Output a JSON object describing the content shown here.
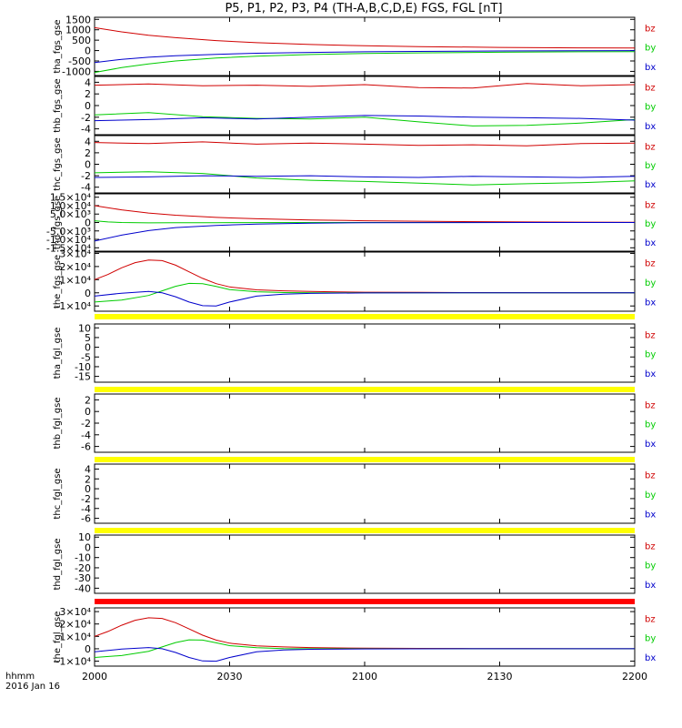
{
  "title": "P5, P1, P2, P3, P4 (TH-A,B,C,D,E) FGS, FGL [nT]",
  "footer": {
    "line1": "hhmm",
    "line2": "2016 Jan 16"
  },
  "colors": {
    "bz": "#d00000",
    "by": "#00cc00",
    "bx": "#0000cc",
    "bar_yellow": "#ffff00",
    "bar_red": "#ff0000"
  },
  "chart_data": {
    "type": "line",
    "x_range": [
      "2000",
      "2200"
    ],
    "x_ticks": [
      "2000",
      "2030",
      "2100",
      "2130",
      "2200"
    ],
    "legend": [
      "bz",
      "by",
      "bx"
    ],
    "panels": [
      {
        "ylabel": "tha_fgs_gse",
        "ylim": [
          -1200,
          1600
        ],
        "ytick_values": [
          1500,
          1000,
          500,
          0,
          -500,
          -1000
        ],
        "ytick_labels": [
          "1500",
          "1000",
          "500",
          "0",
          "-500",
          "-1000"
        ],
        "series": [
          {
            "name": "bz",
            "x": [
              0,
              10,
              20,
              30,
              45,
              60,
              80,
              100,
              120,
              150,
              180,
              200
            ],
            "y": [
              1100,
              900,
              740,
              620,
              480,
              380,
              290,
              230,
              190,
              150,
              130,
              120
            ]
          },
          {
            "name": "by",
            "x": [
              0,
              10,
              20,
              30,
              45,
              60,
              80,
              100,
              120,
              150,
              180,
              200
            ],
            "y": [
              -1050,
              -820,
              -640,
              -500,
              -360,
              -270,
              -190,
              -140,
              -110,
              -80,
              -60,
              -50
            ]
          },
          {
            "name": "bx",
            "x": [
              0,
              10,
              20,
              30,
              45,
              60,
              80,
              100,
              120,
              150,
              180,
              200
            ],
            "y": [
              -580,
              -420,
              -320,
              -250,
              -180,
              -130,
              -90,
              -60,
              -40,
              -20,
              -10,
              0
            ]
          }
        ]
      },
      {
        "ylabel": "thb_fgs_gse",
        "ylim": [
          -5,
          5
        ],
        "ytick_values": [
          4,
          2,
          0,
          -2,
          -4
        ],
        "ytick_labels": [
          "4",
          "2",
          "0",
          "-2",
          "-4"
        ],
        "series": [
          {
            "name": "bz",
            "x": [
              0,
              20,
              40,
              60,
              80,
              100,
              120,
              140,
              160,
              180,
              200
            ],
            "y": [
              3.5,
              3.7,
              3.4,
              3.5,
              3.3,
              3.6,
              3.1,
              3.0,
              3.8,
              3.4,
              3.6
            ]
          },
          {
            "name": "by",
            "x": [
              0,
              20,
              40,
              60,
              80,
              100,
              120,
              140,
              160,
              180,
              200
            ],
            "y": [
              -1.6,
              -1.2,
              -1.9,
              -2.2,
              -2.3,
              -2.0,
              -2.8,
              -3.5,
              -3.4,
              -3.0,
              -2.4
            ]
          },
          {
            "name": "bx",
            "x": [
              0,
              20,
              40,
              60,
              80,
              100,
              120,
              140,
              160,
              180,
              200
            ],
            "y": [
              -2.6,
              -2.4,
              -2.1,
              -2.3,
              -2.0,
              -1.7,
              -1.8,
              -2.0,
              -2.1,
              -2.2,
              -2.5
            ]
          }
        ]
      },
      {
        "ylabel": "thc_fgs_gse",
        "ylim": [
          -5,
          5
        ],
        "ytick_values": [
          4,
          2,
          0,
          -2,
          -4
        ],
        "ytick_labels": [
          "4",
          "2",
          "0",
          "-2",
          "-4"
        ],
        "series": [
          {
            "name": "bz",
            "x": [
              0,
              20,
              40,
              60,
              80,
              100,
              120,
              140,
              160,
              180,
              200
            ],
            "y": [
              3.8,
              3.6,
              3.9,
              3.5,
              3.7,
              3.5,
              3.3,
              3.4,
              3.2,
              3.6,
              3.7
            ]
          },
          {
            "name": "by",
            "x": [
              0,
              20,
              40,
              60,
              80,
              100,
              120,
              140,
              160,
              180,
              200
            ],
            "y": [
              -1.5,
              -1.3,
              -1.6,
              -2.4,
              -2.8,
              -3.0,
              -3.3,
              -3.6,
              -3.4,
              -3.2,
              -2.9
            ]
          },
          {
            "name": "bx",
            "x": [
              0,
              20,
              40,
              60,
              80,
              100,
              120,
              140,
              160,
              180,
              200
            ],
            "y": [
              -2.3,
              -2.2,
              -2.0,
              -2.1,
              -2.0,
              -2.2,
              -2.3,
              -2.1,
              -2.2,
              -2.3,
              -2.1
            ]
          }
        ]
      },
      {
        "ylabel": "thd_fgs_gse",
        "ylim": [
          -17000,
          17000
        ],
        "ytick_values": [
          15000,
          10000,
          5000,
          0,
          -5000,
          -10000,
          -15000
        ],
        "ytick_labels": [
          "1.5×10⁴",
          "1.0×10⁴",
          "5.0×10³",
          "0",
          "-5.0×10³",
          "-1.0×10⁴",
          "-1.5×10⁴"
        ],
        "series": [
          {
            "name": "bz",
            "x": [
              0,
              10,
              20,
              30,
              45,
              60,
              80,
              100,
              130,
              160,
              200
            ],
            "y": [
              10000,
              7500,
              5600,
              4300,
              3000,
              2200,
              1500,
              1000,
              600,
              300,
              100
            ]
          },
          {
            "name": "by",
            "x": [
              0,
              5,
              10,
              20,
              30,
              45,
              60,
              80,
              100,
              130,
              200
            ],
            "y": [
              1000,
              300,
              0,
              -200,
              -150,
              -100,
              -50,
              -20,
              0,
              0,
              0
            ]
          },
          {
            "name": "bx",
            "x": [
              0,
              10,
              20,
              30,
              45,
              60,
              80,
              100,
              130,
              160,
              200
            ],
            "y": [
              -11000,
              -7500,
              -4800,
              -3000,
              -1700,
              -900,
              -400,
              -150,
              -40,
              0,
              0
            ]
          }
        ]
      },
      {
        "ylabel": "the_fgs_gse",
        "ylim": [
          -14000,
          31000
        ],
        "ytick_values": [
          30000,
          20000,
          10000,
          0,
          -10000
        ],
        "ytick_labels": [
          "3×10⁴",
          "2×10⁴",
          "1×10⁴",
          "0",
          "-1×10⁴"
        ],
        "series": [
          {
            "name": "bz",
            "x": [
              0,
              5,
              10,
              15,
              20,
              25,
              30,
              35,
              40,
              45,
              50,
              60,
              70,
              80,
              90,
              100,
              120,
              140,
              160,
              200
            ],
            "y": [
              10000,
              14000,
              19000,
              23000,
              25000,
              24500,
              21000,
              16000,
              11000,
              7000,
              4500,
              2300,
              1500,
              1000,
              700,
              500,
              300,
              200,
              100,
              0
            ]
          },
          {
            "name": "by",
            "x": [
              0,
              10,
              20,
              25,
              30,
              35,
              40,
              45,
              50,
              60,
              70,
              80,
              100,
              140,
              200
            ],
            "y": [
              -7000,
              -5500,
              -2000,
              1500,
              5000,
              7200,
              7000,
              4800,
              2500,
              800,
              200,
              0,
              0,
              0,
              0
            ]
          },
          {
            "name": "bx",
            "x": [
              0,
              10,
              20,
              25,
              30,
              35,
              40,
              45,
              50,
              60,
              70,
              80,
              100,
              140,
              200
            ],
            "y": [
              -2500,
              -300,
              1000,
              0,
              -3000,
              -7000,
              -9800,
              -10000,
              -7000,
              -2500,
              -1000,
              -400,
              -100,
              0,
              0
            ]
          }
        ]
      },
      {
        "ylabel": "tha_fgl_gse",
        "ylim": [
          -18,
          12
        ],
        "ytick_values": [
          10,
          5,
          0,
          -5,
          -10,
          -15
        ],
        "ytick_labels": [
          "10",
          "5",
          "0",
          "-5",
          "-10",
          "-15"
        ],
        "series": []
      },
      {
        "ylabel": "thb_fgl_gse",
        "ylim": [
          -7,
          3
        ],
        "ytick_values": [
          2,
          0,
          -2,
          -4,
          -6
        ],
        "ytick_labels": [
          "2",
          "0",
          "-2",
          "-4",
          "-6"
        ],
        "series": []
      },
      {
        "ylabel": "thc_fgl_gse",
        "ylim": [
          -7,
          5
        ],
        "ytick_values": [
          4,
          2,
          0,
          -2,
          -4,
          -6
        ],
        "ytick_labels": [
          "4",
          "2",
          "0",
          "-2",
          "-4",
          "-6"
        ],
        "series": []
      },
      {
        "ylabel": "thd_fgl_gse",
        "ylim": [
          -45,
          12
        ],
        "ytick_values": [
          10,
          0,
          -10,
          -20,
          -30,
          -40
        ],
        "ytick_labels": [
          "10",
          "0",
          "-10",
          "-20",
          "-30",
          "-40"
        ],
        "series": []
      },
      {
        "ylabel": "the_fgl_gse",
        "ylim": [
          -14000,
          33000
        ],
        "ytick_values": [
          30000,
          20000,
          10000,
          0,
          -10000
        ],
        "ytick_labels": [
          "3×10⁴",
          "2×10⁴",
          "1×10⁴",
          "0",
          "-1×10⁴"
        ],
        "series": [
          {
            "name": "bz",
            "x": [
              0,
              5,
              10,
              15,
              20,
              25,
              30,
              35,
              40,
              45,
              50,
              60,
              70,
              80,
              90,
              100,
              120,
              140,
              160,
              200
            ],
            "y": [
              10000,
              14000,
              19000,
              23000,
              25000,
              24500,
              21000,
              16000,
              11000,
              7000,
              4500,
              2300,
              1500,
              1000,
              700,
              500,
              300,
              200,
              100,
              0
            ]
          },
          {
            "name": "by",
            "x": [
              0,
              10,
              20,
              25,
              30,
              35,
              40,
              45,
              50,
              60,
              70,
              80,
              100,
              140,
              200
            ],
            "y": [
              -7000,
              -5500,
              -2000,
              1500,
              5000,
              7200,
              7000,
              4800,
              2500,
              800,
              200,
              0,
              0,
              0,
              0
            ]
          },
          {
            "name": "bx",
            "x": [
              0,
              10,
              20,
              25,
              30,
              35,
              40,
              45,
              50,
              60,
              70,
              80,
              100,
              140,
              200
            ],
            "y": [
              -2500,
              -300,
              1000,
              0,
              -3000,
              -7000,
              -9800,
              -10000,
              -7000,
              -2500,
              -1000,
              -400,
              -100,
              0,
              0
            ]
          }
        ]
      }
    ],
    "separator_bars": [
      "yellow",
      "yellow",
      "yellow",
      "yellow",
      "red"
    ]
  }
}
